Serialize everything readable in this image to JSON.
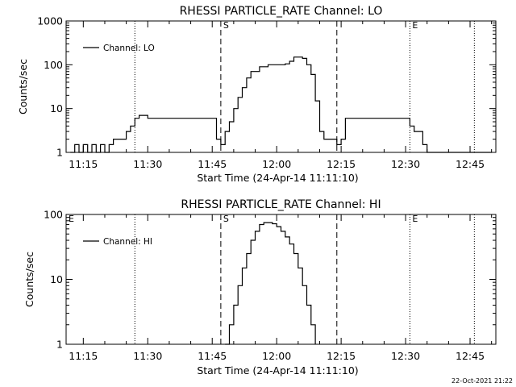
{
  "chart_data": [
    {
      "type": "line",
      "title": "RHESSI PARTICLE_RATE Channel: LO",
      "xlabel": "Start Time (24-Apr-14 11:11:10)",
      "ylabel": "Counts/sec",
      "yscale": "log",
      "ylim": [
        1,
        1000
      ],
      "xlim": [
        "11:11",
        "12:51"
      ],
      "x_tick_labels": [
        "11:15",
        "11:30",
        "11:45",
        "12:00",
        "12:15",
        "12:30",
        "12:45"
      ],
      "y_tick_labels": [
        "1",
        "10",
        "100",
        "1000"
      ],
      "legend": [
        "Channel: LO"
      ],
      "legend_position": "top-left",
      "dotted_lines": [
        "11:27",
        "12:31",
        "12:46"
      ],
      "dashed_lines": [
        "11:47",
        "12:14"
      ],
      "markers": [
        {
          "text": "S",
          "x": "11:47"
        },
        {
          "text": "E",
          "x": "12:31"
        }
      ],
      "series": [
        {
          "name": "Channel: LO",
          "x": [
            "11:12",
            "11:13",
            "11:14",
            "11:15",
            "11:16",
            "11:17",
            "11:18",
            "11:19",
            "11:20",
            "11:21",
            "11:22",
            "11:23",
            "11:24",
            "11:25",
            "11:26",
            "11:27",
            "11:28",
            "11:30",
            "11:33",
            "11:36",
            "11:39",
            "11:42",
            "11:44",
            "11:45",
            "11:46",
            "11:47",
            "11:48",
            "11:49",
            "11:50",
            "11:51",
            "11:52",
            "11:53",
            "11:54",
            "11:56",
            "11:58",
            "12:00",
            "12:02",
            "12:03",
            "12:04",
            "12:05",
            "12:06",
            "12:07",
            "12:08",
            "12:09",
            "12:10",
            "12:11",
            "12:12",
            "12:13",
            "12:14",
            "12:15",
            "12:16",
            "12:18",
            "12:21",
            "12:24",
            "12:27",
            "12:29",
            "12:31",
            "12:32",
            "12:33",
            "12:34",
            "12:35",
            "12:36",
            "12:37",
            "12:38",
            "12:39",
            "12:40",
            "12:41",
            "12:42",
            "12:43",
            "12:44",
            "12:45",
            "12:46",
            "12:47",
            "12:48",
            "12:49",
            "12:50"
          ],
          "y": [
            1,
            1.5,
            1,
            1.5,
            1,
            1.5,
            1,
            1.5,
            1,
            1.5,
            2,
            2,
            2,
            3,
            4,
            6,
            7,
            6,
            6,
            6,
            6,
            6,
            6,
            6,
            2,
            1.5,
            3,
            5,
            10,
            18,
            30,
            50,
            70,
            90,
            100,
            100,
            105,
            120,
            150,
            150,
            140,
            100,
            60,
            15,
            3,
            2,
            2,
            2,
            1.5,
            2,
            6,
            6,
            6,
            6,
            6,
            6,
            4,
            3,
            3,
            1.5,
            1,
            1,
            1,
            1,
            1,
            1,
            1,
            1,
            1,
            1,
            1,
            1,
            1,
            1,
            1,
            1
          ]
        }
      ]
    },
    {
      "type": "line",
      "title": "RHESSI PARTICLE_RATE Channel: HI",
      "xlabel": "Start Time (24-Apr-14 11:11:10)",
      "ylabel": "Counts/sec",
      "yscale": "log",
      "ylim": [
        1,
        100
      ],
      "xlim": [
        "11:11",
        "12:51"
      ],
      "x_tick_labels": [
        "11:15",
        "11:30",
        "11:45",
        "12:00",
        "12:15",
        "12:30",
        "12:45"
      ],
      "y_tick_labels": [
        "1",
        "10",
        "100"
      ],
      "legend": [
        "Channel: HI"
      ],
      "legend_position": "top-left",
      "dotted_lines": [
        "11:27",
        "12:31",
        "12:46"
      ],
      "dashed_lines": [
        "11:47",
        "12:14"
      ],
      "markers": [
        {
          "text": "E",
          "x": "11:11"
        },
        {
          "text": "S",
          "x": "11:47"
        },
        {
          "text": "E",
          "x": "12:31"
        }
      ],
      "series": [
        {
          "name": "Channel: HI",
          "x": [
            "11:48",
            "11:49",
            "11:50",
            "11:51",
            "11:52",
            "11:53",
            "11:54",
            "11:55",
            "11:56",
            "11:57",
            "11:58",
            "11:59",
            "12:00",
            "12:01",
            "12:02",
            "12:03",
            "12:04",
            "12:05",
            "12:06",
            "12:07",
            "12:08",
            "12:09"
          ],
          "y": [
            1,
            2,
            4,
            8,
            15,
            25,
            40,
            55,
            70,
            75,
            75,
            72,
            65,
            55,
            45,
            35,
            25,
            15,
            8,
            4,
            2,
            1
          ]
        }
      ]
    }
  ],
  "footer": {
    "timestamp": "22-Oct-2021 21:22"
  }
}
